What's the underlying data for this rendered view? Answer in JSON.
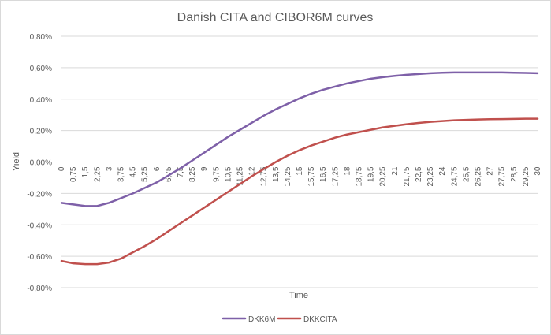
{
  "chart_data": {
    "type": "line",
    "title": "Danish CITA and CIBOR6M curves",
    "xlabel": "Time",
    "ylabel": "Yield",
    "ylim": [
      -0.8,
      0.8
    ],
    "y_ticks": [
      -0.8,
      -0.6,
      -0.4,
      -0.2,
      0.0,
      0.2,
      0.4,
      0.6,
      0.8
    ],
    "y_tick_labels": [
      "-0,80%",
      "-0,60%",
      "-0,40%",
      "-0,20%",
      "0,00%",
      "0,20%",
      "0,40%",
      "0,60%",
      "0,80%"
    ],
    "x_categories": [
      "0",
      "0,75",
      "1,5",
      "2,25",
      "3",
      "3,75",
      "4,5",
      "5,25",
      "6",
      "6,75",
      "7,5",
      "8,25",
      "9",
      "9,75",
      "10,5",
      "11,25",
      "12",
      "12,75",
      "13,5",
      "14,25",
      "15",
      "15,75",
      "16,5",
      "17,25",
      "18",
      "18,75",
      "19,5",
      "20,25",
      "21",
      "21,75",
      "22,5",
      "23,25",
      "24",
      "24,75",
      "25,5",
      "26,25",
      "27",
      "27,75",
      "28,5",
      "29,25",
      "30"
    ],
    "x_numeric": [
      0,
      0.75,
      1.5,
      2.25,
      3,
      3.75,
      4.5,
      5.25,
      6,
      6.75,
      7.5,
      8.25,
      9,
      9.75,
      10.5,
      11.25,
      12,
      12.75,
      13.5,
      14.25,
      15,
      15.75,
      16.5,
      17.25,
      18,
      18.75,
      19.5,
      20.25,
      21,
      21.75,
      22.5,
      23.25,
      24,
      24.75,
      25.5,
      26.25,
      27,
      27.75,
      28.5,
      29.25,
      30
    ],
    "grid": true,
    "legend": "bottom",
    "series": [
      {
        "name": "DKK6M",
        "color": "#7e60a8",
        "values": [
          -0.26,
          -0.27,
          -0.28,
          -0.28,
          -0.26,
          -0.23,
          -0.2,
          -0.165,
          -0.13,
          -0.085,
          -0.04,
          0.01,
          0.06,
          0.11,
          0.16,
          0.205,
          0.25,
          0.295,
          0.335,
          0.37,
          0.405,
          0.435,
          0.46,
          0.48,
          0.5,
          0.515,
          0.53,
          0.54,
          0.548,
          0.555,
          0.56,
          0.565,
          0.568,
          0.57,
          0.57,
          0.57,
          0.57,
          0.57,
          0.568,
          0.567,
          0.565
        ]
      },
      {
        "name": "DKKCITA",
        "color": "#c0504d",
        "values": [
          -0.63,
          -0.645,
          -0.65,
          -0.65,
          -0.64,
          -0.615,
          -0.575,
          -0.535,
          -0.49,
          -0.44,
          -0.39,
          -0.34,
          -0.29,
          -0.24,
          -0.19,
          -0.14,
          -0.09,
          -0.045,
          0.0,
          0.04,
          0.075,
          0.105,
          0.13,
          0.155,
          0.175,
          0.19,
          0.205,
          0.22,
          0.23,
          0.24,
          0.248,
          0.255,
          0.26,
          0.265,
          0.268,
          0.27,
          0.272,
          0.273,
          0.274,
          0.275,
          0.275
        ]
      }
    ]
  }
}
